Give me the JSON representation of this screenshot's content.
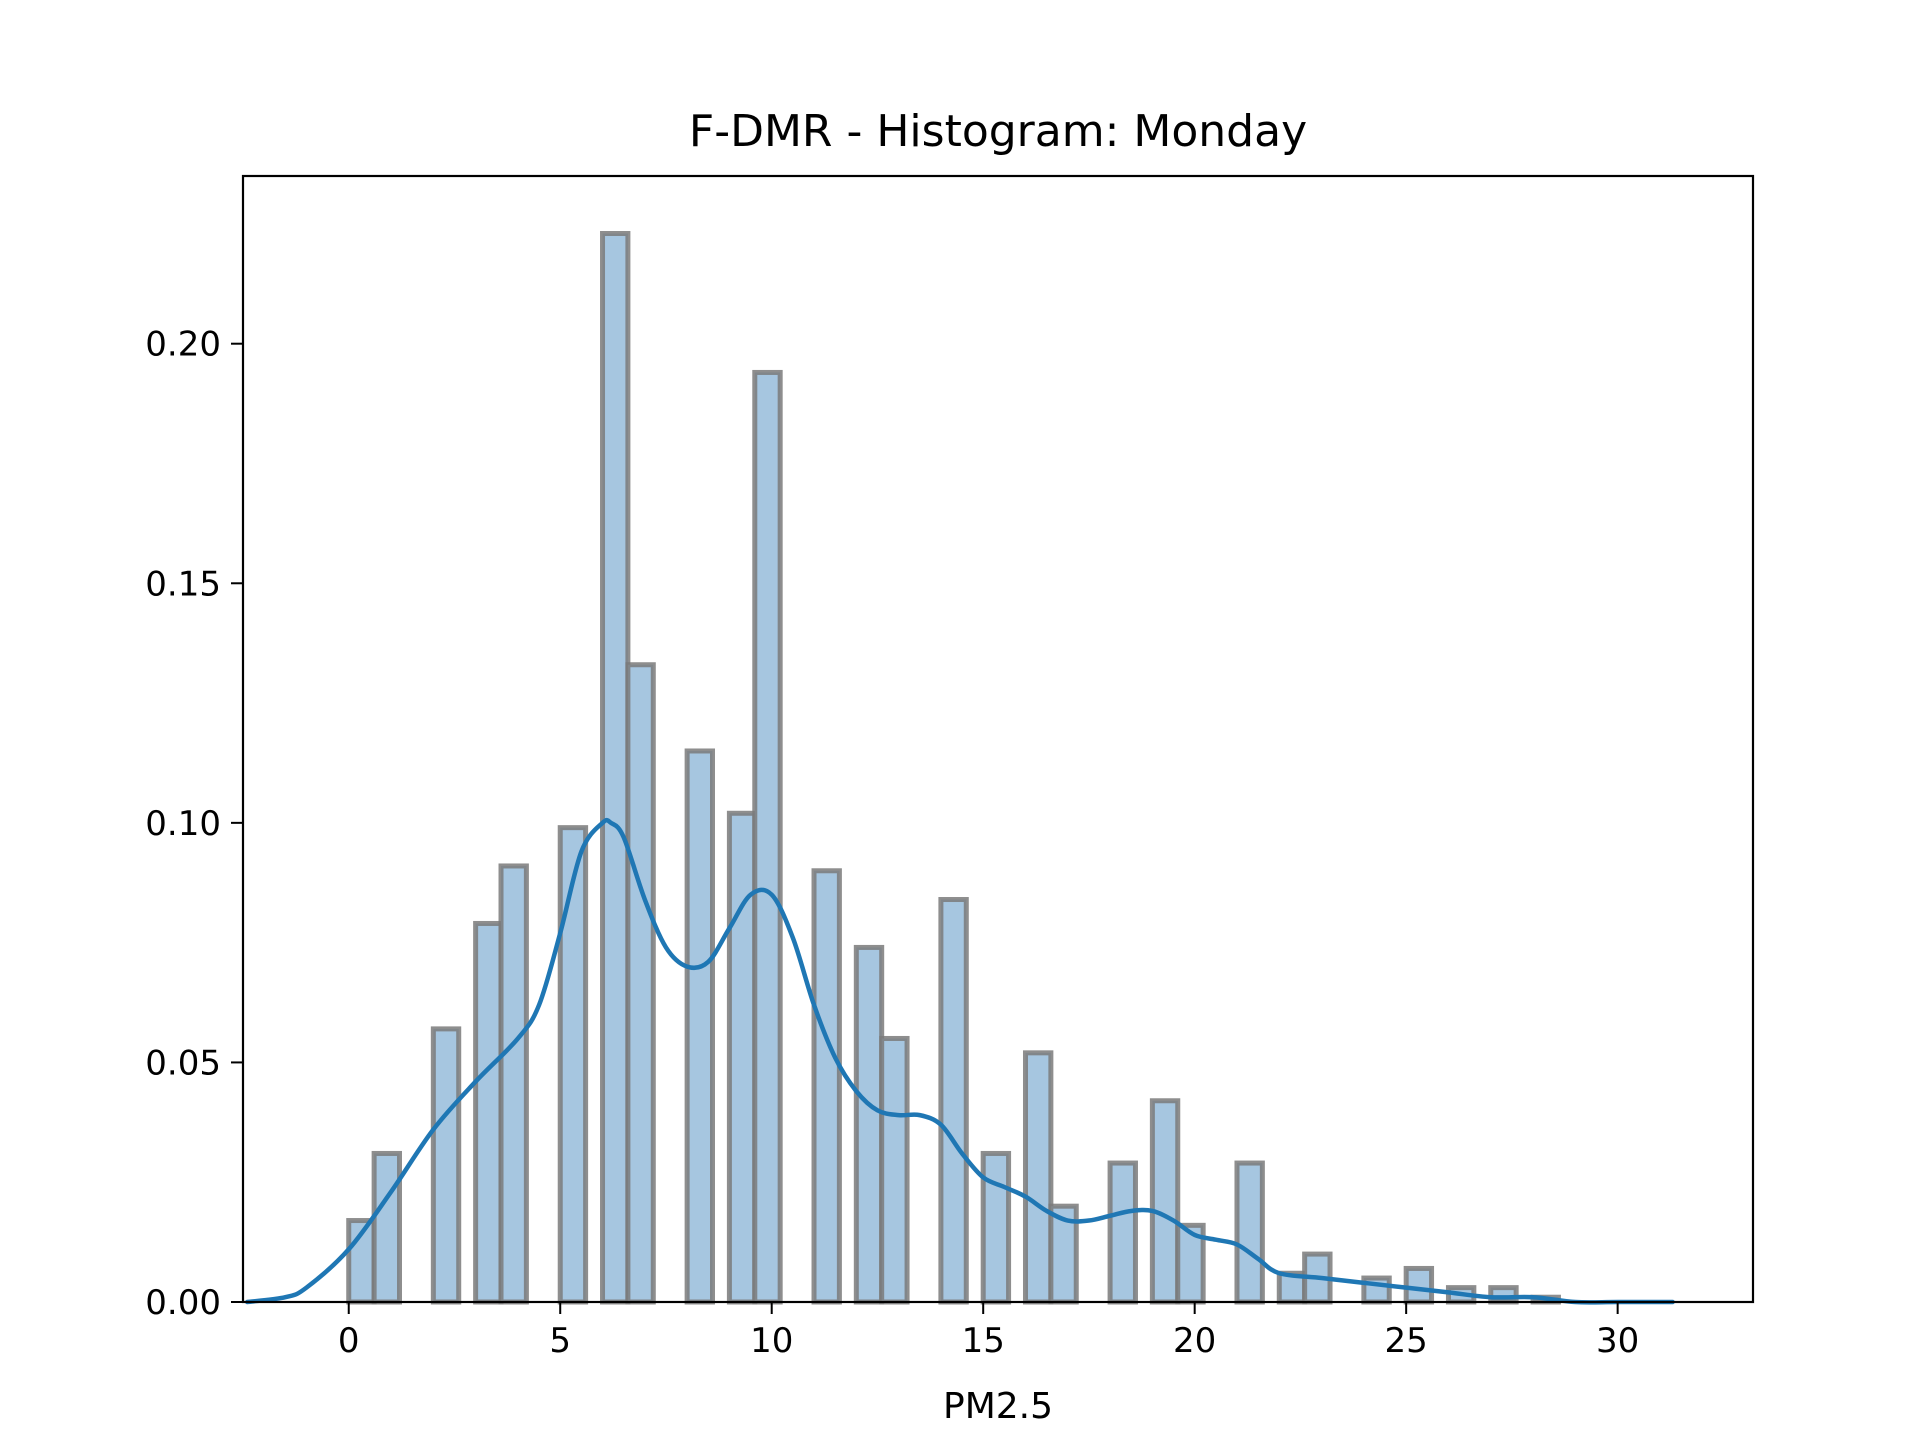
{
  "chart_data": {
    "type": "bar",
    "title": "F-DMR - Histogram: Monday",
    "xlabel": "PM2.5",
    "ylabel": "",
    "xlim": [
      -2.5,
      33.2
    ],
    "ylim": [
      0,
      0.235
    ],
    "xticks": [
      0,
      5,
      10,
      15,
      20,
      25,
      30
    ],
    "yticks": [
      0.0,
      0.05,
      0.1,
      0.15,
      0.2
    ],
    "ytick_labels": [
      "0.00",
      "0.05",
      "0.10",
      "0.15",
      "0.20"
    ],
    "grid": false,
    "legend": "none",
    "histogram": {
      "bin_width": 0.6,
      "bars": [
        {
          "x": 0.0,
          "y": 0.017
        },
        {
          "x": 0.6,
          "y": 0.031
        },
        {
          "x": 2.0,
          "y": 0.057
        },
        {
          "x": 3.0,
          "y": 0.079
        },
        {
          "x": 3.6,
          "y": 0.091
        },
        {
          "x": 5.0,
          "y": 0.099
        },
        {
          "x": 6.0,
          "y": 0.223
        },
        {
          "x": 6.6,
          "y": 0.133
        },
        {
          "x": 8.0,
          "y": 0.115
        },
        {
          "x": 9.0,
          "y": 0.102
        },
        {
          "x": 9.6,
          "y": 0.194
        },
        {
          "x": 11.0,
          "y": 0.09
        },
        {
          "x": 12.0,
          "y": 0.074
        },
        {
          "x": 12.6,
          "y": 0.055
        },
        {
          "x": 14.0,
          "y": 0.084
        },
        {
          "x": 15.0,
          "y": 0.031
        },
        {
          "x": 16.0,
          "y": 0.052
        },
        {
          "x": 16.6,
          "y": 0.02
        },
        {
          "x": 18.0,
          "y": 0.029
        },
        {
          "x": 19.0,
          "y": 0.042
        },
        {
          "x": 19.6,
          "y": 0.016
        },
        {
          "x": 21.0,
          "y": 0.029
        },
        {
          "x": 22.0,
          "y": 0.006
        },
        {
          "x": 22.6,
          "y": 0.01
        },
        {
          "x": 24.0,
          "y": 0.005
        },
        {
          "x": 25.0,
          "y": 0.007
        },
        {
          "x": 26.0,
          "y": 0.003
        },
        {
          "x": 27.0,
          "y": 0.003
        },
        {
          "x": 28.0,
          "y": 0.001
        }
      ]
    },
    "kde": {
      "x": [
        -2.4,
        -1.5,
        -1.0,
        0.0,
        1.0,
        2.0,
        3.0,
        4.0,
        4.5,
        5.0,
        5.5,
        6.0,
        6.2,
        6.5,
        7.0,
        7.5,
        8.0,
        8.5,
        9.0,
        9.5,
        10.0,
        10.5,
        11.0,
        11.5,
        12.0,
        12.5,
        13.0,
        13.5,
        14.0,
        14.5,
        15.0,
        15.5,
        16.0,
        16.5,
        17.0,
        17.5,
        18.0,
        18.5,
        19.0,
        19.5,
        20.0,
        20.5,
        21.0,
        21.5,
        22.0,
        23.0,
        24.0,
        25.0,
        26.0,
        27.0,
        28.0,
        29.0,
        30.0,
        31.3
      ],
      "y": [
        0.0,
        0.001,
        0.003,
        0.011,
        0.023,
        0.036,
        0.046,
        0.055,
        0.062,
        0.077,
        0.094,
        0.1,
        0.1,
        0.097,
        0.084,
        0.074,
        0.07,
        0.071,
        0.078,
        0.085,
        0.085,
        0.076,
        0.062,
        0.051,
        0.044,
        0.04,
        0.039,
        0.039,
        0.037,
        0.031,
        0.026,
        0.024,
        0.022,
        0.019,
        0.017,
        0.017,
        0.018,
        0.019,
        0.019,
        0.017,
        0.014,
        0.013,
        0.012,
        0.009,
        0.006,
        0.005,
        0.004,
        0.003,
        0.002,
        0.001,
        0.001,
        0.0,
        0.0,
        0.0
      ]
    },
    "colors": {
      "bar_fill": "#a6c6e0",
      "bar_edge": "#7a7a7a",
      "kde_line": "#1f77b4",
      "axes": "#000000"
    }
  }
}
